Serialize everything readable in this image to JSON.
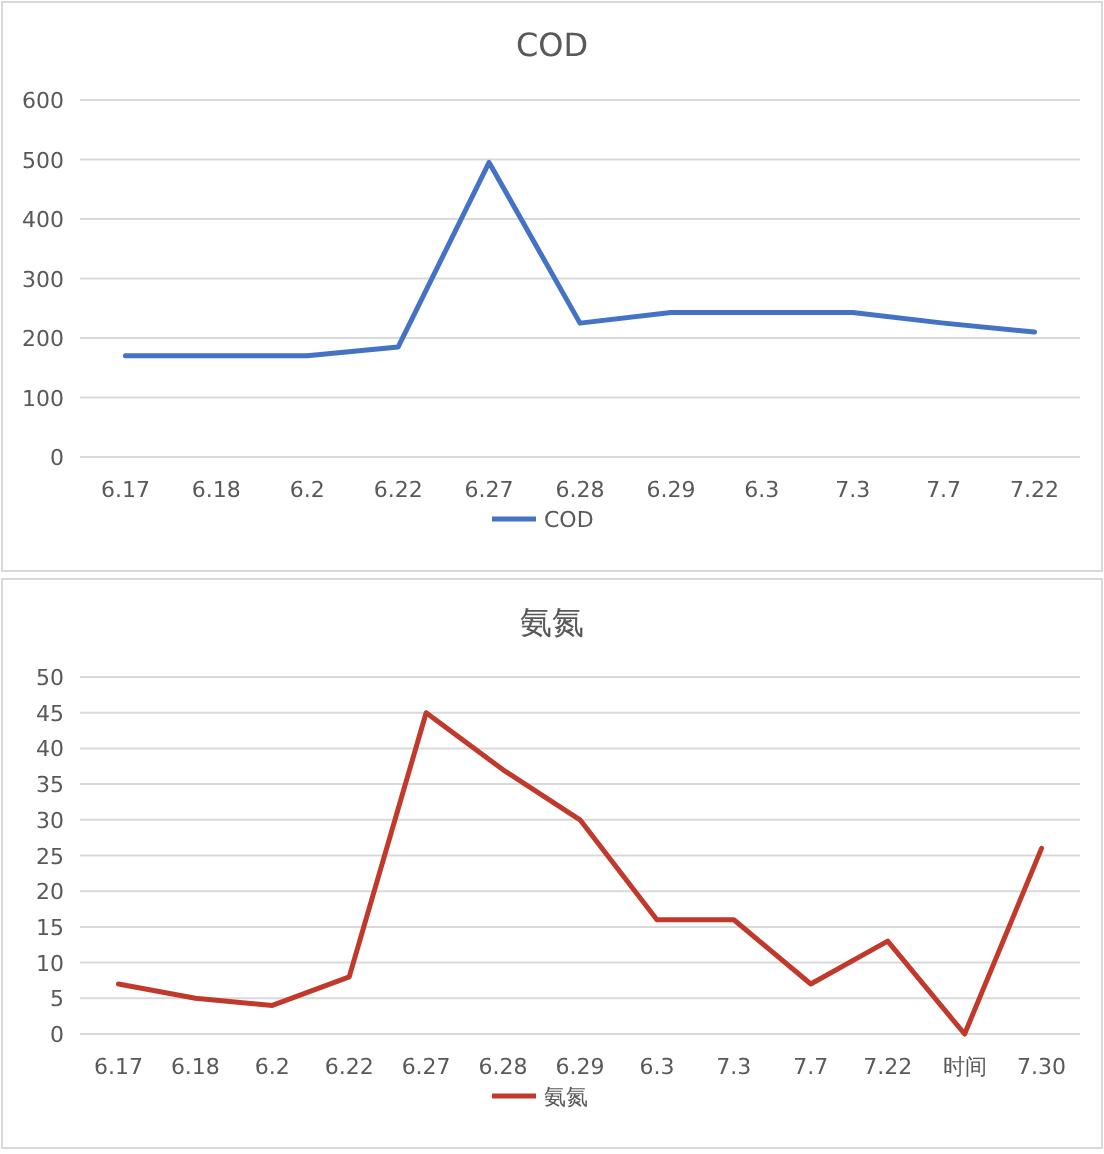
{
  "chart_data": [
    {
      "type": "line",
      "title": "COD",
      "categories": [
        "6.17",
        "6.18",
        "6.2",
        "6.22",
        "6.27",
        "6.28",
        "6.29",
        "6.3",
        "7.3",
        "7.7",
        "7.22"
      ],
      "series": [
        {
          "name": "COD",
          "color": "#4472c4",
          "values": [
            170,
            170,
            170,
            185,
            495,
            225,
            243,
            243,
            243,
            225,
            210
          ]
        }
      ],
      "ylim": [
        0,
        600
      ],
      "yticks": [
        0,
        100,
        200,
        300,
        400,
        500,
        600
      ],
      "grid": "y",
      "legend": "bottom",
      "marker": "none",
      "line_style": "solid"
    },
    {
      "type": "line",
      "title": "氨氮",
      "categories": [
        "6.17",
        "6.18",
        "6.2",
        "6.22",
        "6.27",
        "6.28",
        "6.29",
        "6.3",
        "7.3",
        "7.7",
        "7.22",
        "时间",
        "7.30"
      ],
      "series": [
        {
          "name": "氨氮",
          "color": "#c0392b",
          "values": [
            7,
            5,
            4,
            8,
            45,
            37,
            30,
            16,
            16,
            7,
            13,
            0,
            26
          ]
        }
      ],
      "ylim": [
        0,
        50
      ],
      "yticks": [
        0,
        5,
        10,
        15,
        20,
        25,
        30,
        35,
        40,
        45,
        50
      ],
      "grid": "y",
      "legend": "bottom",
      "marker": "none",
      "line_style": "solid"
    }
  ]
}
